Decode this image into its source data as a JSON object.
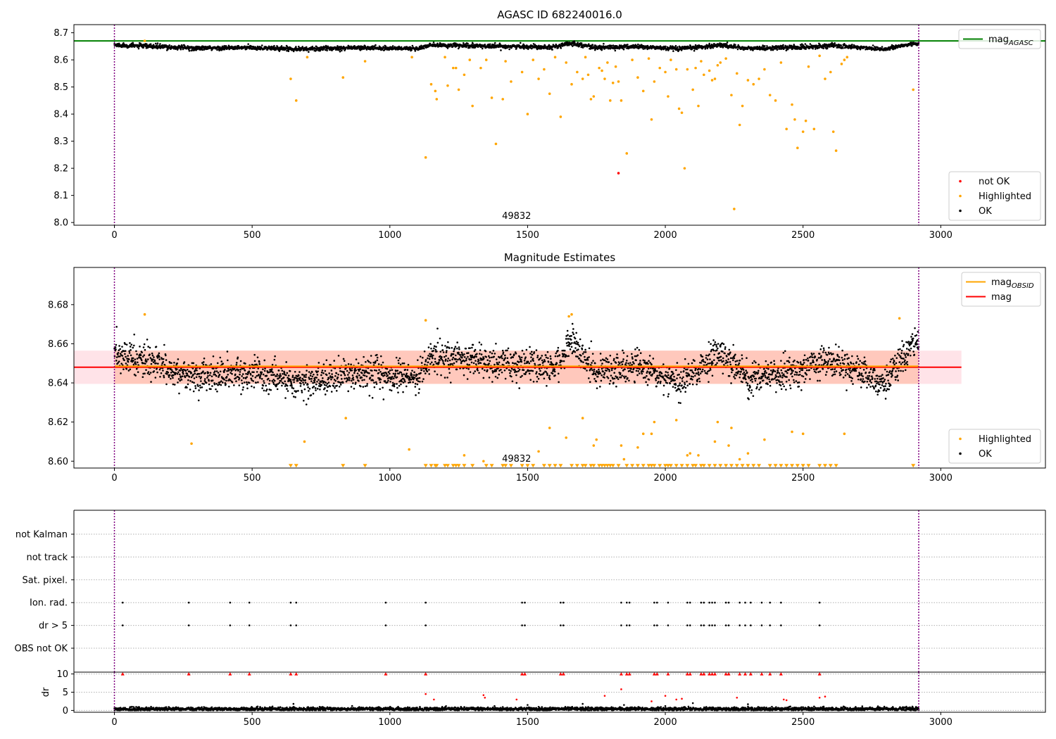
{
  "colors": {
    "ok": "#000000",
    "highlighted": "#FFA500",
    "not_ok": "#FF0000",
    "agasc_line": "#008000",
    "mag_line": "#FF0000",
    "mag_obsid_line": "#FFA500",
    "mag_band": "#FFC0CB",
    "obsid_band": "#FFA07A",
    "obsid_boundary": "#800080",
    "flag_grid": "#B0B0B0"
  },
  "chart_data": [
    {
      "type": "scatter",
      "title": "AGASC ID 682240016.0",
      "xlabel": "",
      "ylabel": "",
      "xlim": [
        -147,
        3380
      ],
      "ylim": [
        7.99,
        8.73
      ],
      "x_ticks": [
        0,
        500,
        1000,
        1500,
        2000,
        2500,
        3000
      ],
      "x_tick_labels": [
        "0",
        "500",
        "1000",
        "1500",
        "2000",
        "2500",
        "3000"
      ],
      "y_ticks": [
        8.0,
        8.1,
        8.2,
        8.3,
        8.4,
        8.5,
        8.6,
        8.7
      ],
      "y_tick_labels": [
        "8.0",
        "8.1",
        "8.2",
        "8.3",
        "8.4",
        "8.5",
        "8.6",
        "8.7"
      ],
      "obsid_boundaries": [
        0,
        2920
      ],
      "obsid_label": "49832",
      "obsid_label_x": 1460,
      "legend_upper": {
        "location": "upper right",
        "entries": [
          {
            "label": "mag",
            "subscript": "AGASC",
            "series": "mag_agasc"
          }
        ]
      },
      "legend_lower": {
        "location": "lower right",
        "entries": [
          {
            "label": "not OK",
            "series": "not_ok"
          },
          {
            "label": "Highlighted",
            "series": "highlighted"
          },
          {
            "label": "OK",
            "series": "ok"
          }
        ]
      },
      "mag_agasc": 8.67,
      "ok_trend": {
        "x_range": [
          0,
          2920
        ],
        "mean": 8.648,
        "variation": [
          [
            0,
            8.655
          ],
          [
            300,
            8.643
          ],
          [
            500,
            8.645
          ],
          [
            700,
            8.64
          ],
          [
            850,
            8.645
          ],
          [
            1100,
            8.642
          ],
          [
            1150,
            8.654
          ],
          [
            1400,
            8.65
          ],
          [
            1600,
            8.648
          ],
          [
            1660,
            8.662
          ],
          [
            1750,
            8.645
          ],
          [
            1900,
            8.649
          ],
          [
            2050,
            8.64
          ],
          [
            2200,
            8.655
          ],
          [
            2300,
            8.642
          ],
          [
            2500,
            8.647
          ],
          [
            2600,
            8.653
          ],
          [
            2800,
            8.64
          ],
          [
            2900,
            8.66
          ]
        ],
        "scatter": 0.004
      },
      "highlighted": [
        [
          110,
          8.67
        ],
        [
          640,
          8.53
        ],
        [
          660,
          8.45
        ],
        [
          700,
          8.61
        ],
        [
          830,
          8.535
        ],
        [
          910,
          8.595
        ],
        [
          1080,
          8.61
        ],
        [
          1130,
          8.24
        ],
        [
          1150,
          8.51
        ],
        [
          1165,
          8.485
        ],
        [
          1170,
          8.455
        ],
        [
          1200,
          8.61
        ],
        [
          1210,
          8.505
        ],
        [
          1230,
          8.57
        ],
        [
          1240,
          8.57
        ],
        [
          1250,
          8.49
        ],
        [
          1270,
          8.545
        ],
        [
          1290,
          8.6
        ],
        [
          1300,
          8.43
        ],
        [
          1330,
          8.57
        ],
        [
          1350,
          8.6
        ],
        [
          1370,
          8.46
        ],
        [
          1385,
          8.29
        ],
        [
          1410,
          8.455
        ],
        [
          1420,
          8.595
        ],
        [
          1440,
          8.52
        ],
        [
          1480,
          8.555
        ],
        [
          1500,
          8.4
        ],
        [
          1520,
          8.6
        ],
        [
          1540,
          8.53
        ],
        [
          1560,
          8.565
        ],
        [
          1580,
          8.475
        ],
        [
          1600,
          8.61
        ],
        [
          1620,
          8.39
        ],
        [
          1640,
          8.59
        ],
        [
          1660,
          8.51
        ],
        [
          1680,
          8.555
        ],
        [
          1700,
          8.53
        ],
        [
          1710,
          8.61
        ],
        [
          1720,
          8.545
        ],
        [
          1730,
          8.455
        ],
        [
          1740,
          8.465
        ],
        [
          1760,
          8.57
        ],
        [
          1770,
          8.56
        ],
        [
          1780,
          8.53
        ],
        [
          1790,
          8.59
        ],
        [
          1800,
          8.45
        ],
        [
          1810,
          8.515
        ],
        [
          1820,
          8.575
        ],
        [
          1830,
          8.52
        ],
        [
          1840,
          8.45
        ],
        [
          1860,
          8.255
        ],
        [
          1880,
          8.6
        ],
        [
          1900,
          8.535
        ],
        [
          1920,
          8.485
        ],
        [
          1940,
          8.605
        ],
        [
          1950,
          8.38
        ],
        [
          1960,
          8.52
        ],
        [
          1980,
          8.57
        ],
        [
          2000,
          8.555
        ],
        [
          2010,
          8.465
        ],
        [
          2020,
          8.6
        ],
        [
          2040,
          8.565
        ],
        [
          2050,
          8.42
        ],
        [
          2060,
          8.405
        ],
        [
          2080,
          8.565
        ],
        [
          2100,
          8.49
        ],
        [
          2110,
          8.57
        ],
        [
          2120,
          8.43
        ],
        [
          2130,
          8.595
        ],
        [
          2140,
          8.545
        ],
        [
          2160,
          8.56
        ],
        [
          2170,
          8.525
        ],
        [
          2180,
          8.53
        ],
        [
          2190,
          8.58
        ],
        [
          2200,
          8.59
        ],
        [
          2220,
          8.605
        ],
        [
          2240,
          8.47
        ],
        [
          2260,
          8.55
        ],
        [
          2270,
          8.36
        ],
        [
          2280,
          8.43
        ],
        [
          2300,
          8.525
        ],
        [
          2320,
          8.51
        ],
        [
          2340,
          8.53
        ],
        [
          2360,
          8.565
        ],
        [
          2380,
          8.47
        ],
        [
          2400,
          8.45
        ],
        [
          2420,
          8.59
        ],
        [
          2440,
          8.345
        ],
        [
          2460,
          8.435
        ],
        [
          2470,
          8.38
        ],
        [
          2480,
          8.275
        ],
        [
          2500,
          8.335
        ],
        [
          2510,
          8.375
        ],
        [
          2520,
          8.575
        ],
        [
          2540,
          8.345
        ],
        [
          2560,
          8.615
        ],
        [
          2580,
          8.53
        ],
        [
          2600,
          8.555
        ],
        [
          2610,
          8.335
        ],
        [
          2620,
          8.265
        ],
        [
          2640,
          8.585
        ],
        [
          2650,
          8.6
        ],
        [
          2660,
          8.61
        ],
        [
          2250,
          8.05
        ],
        [
          2070,
          8.2
        ],
        [
          2900,
          8.49
        ]
      ],
      "not_ok": [
        [
          1830,
          8.182
        ]
      ]
    },
    {
      "type": "scatter",
      "title": "Magnitude Estimates",
      "xlabel": "",
      "ylabel": "",
      "xlim": [
        -147,
        3380
      ],
      "ylim": [
        8.5965,
        8.699
      ],
      "x_ticks": [
        0,
        500,
        1000,
        1500,
        2000,
        2500,
        3000
      ],
      "x_tick_labels": [
        "0",
        "500",
        "1000",
        "1500",
        "2000",
        "2500",
        "3000"
      ],
      "y_ticks": [
        8.6,
        8.62,
        8.64,
        8.66,
        8.68
      ],
      "y_tick_labels": [
        "8.60",
        "8.62",
        "8.64",
        "8.66",
        "8.68"
      ],
      "obsid_boundaries": [
        0,
        2920
      ],
      "obsid_label": "49832",
      "obsid_label_x": 1460,
      "legend_upper": {
        "location": "upper right",
        "entries": [
          {
            "label": "mag",
            "subscript": "OBSID",
            "series": "mag_obsid"
          },
          {
            "label": "mag",
            "series": "mag"
          }
        ]
      },
      "legend_lower": {
        "location": "lower right",
        "entries": [
          {
            "label": "Highlighted",
            "series": "highlighted"
          },
          {
            "label": "OK",
            "series": "ok"
          }
        ]
      },
      "mag": 8.648,
      "mag_band": [
        8.6395,
        8.6565
      ],
      "mag_obsid": 8.6485,
      "obsid_band": [
        8.6395,
        8.6565
      ],
      "ok_trend": {
        "x_range": [
          0,
          2920
        ],
        "mean": 8.648,
        "variation": [
          [
            0,
            8.655
          ],
          [
            300,
            8.643
          ],
          [
            500,
            8.645
          ],
          [
            700,
            8.64
          ],
          [
            850,
            8.645
          ],
          [
            1100,
            8.642
          ],
          [
            1150,
            8.654
          ],
          [
            1400,
            8.65
          ],
          [
            1600,
            8.648
          ],
          [
            1660,
            8.662
          ],
          [
            1750,
            8.645
          ],
          [
            1900,
            8.649
          ],
          [
            2050,
            8.64
          ],
          [
            2200,
            8.655
          ],
          [
            2300,
            8.642
          ],
          [
            2500,
            8.647
          ],
          [
            2600,
            8.653
          ],
          [
            2800,
            8.64
          ],
          [
            2900,
            8.66
          ]
        ],
        "scatter": 0.004
      },
      "highlighted": [
        [
          110,
          8.675
        ],
        [
          280,
          8.609
        ],
        [
          690,
          8.61
        ],
        [
          840,
          8.622
        ],
        [
          1070,
          8.606
        ],
        [
          1130,
          8.672
        ],
        [
          1270,
          8.603
        ],
        [
          1340,
          8.6
        ],
        [
          1540,
          8.605
        ],
        [
          1580,
          8.617
        ],
        [
          1640,
          8.612
        ],
        [
          1650,
          8.674
        ],
        [
          1660,
          8.675
        ],
        [
          1700,
          8.622
        ],
        [
          1740,
          8.608
        ],
        [
          1750,
          8.611
        ],
        [
          1840,
          8.608
        ],
        [
          1850,
          8.601
        ],
        [
          1900,
          8.607
        ],
        [
          1920,
          8.614
        ],
        [
          1950,
          8.614
        ],
        [
          1960,
          8.62
        ],
        [
          2040,
          8.621
        ],
        [
          2080,
          8.603
        ],
        [
          2090,
          8.604
        ],
        [
          2120,
          8.603
        ],
        [
          2180,
          8.61
        ],
        [
          2190,
          8.62
        ],
        [
          2230,
          8.608
        ],
        [
          2240,
          8.617
        ],
        [
          2270,
          8.601
        ],
        [
          2300,
          8.604
        ],
        [
          2360,
          8.611
        ],
        [
          2460,
          8.615
        ],
        [
          2500,
          8.614
        ],
        [
          2650,
          8.614
        ],
        [
          2850,
          8.673
        ]
      ],
      "highlighted_below": [
        640,
        660,
        830,
        910,
        1130,
        1150,
        1165,
        1170,
        1200,
        1210,
        1230,
        1240,
        1250,
        1270,
        1300,
        1350,
        1370,
        1410,
        1420,
        1440,
        1480,
        1500,
        1520,
        1560,
        1580,
        1600,
        1620,
        1660,
        1680,
        1700,
        1710,
        1730,
        1740,
        1760,
        1770,
        1780,
        1790,
        1800,
        1810,
        1830,
        1860,
        1880,
        1900,
        1920,
        1940,
        1950,
        1960,
        1980,
        2000,
        2010,
        2020,
        2040,
        2060,
        2080,
        2100,
        2110,
        2130,
        2140,
        2160,
        2180,
        2200,
        2220,
        2240,
        2260,
        2280,
        2300,
        2320,
        2340,
        2380,
        2400,
        2420,
        2440,
        2460,
        2480,
        2500,
        2520,
        2560,
        2580,
        2600,
        2620,
        2900
      ],
      "highlighted_below_value": 8.5975
    },
    {
      "type": "scatter",
      "title": "",
      "xlabel": "",
      "ylabel": "",
      "xlim": [
        -147,
        3380
      ],
      "flag_rows": [
        "not Kalman",
        "not track",
        "Sat. pixel.",
        "Ion. rad.",
        "dr > 5",
        "OBS not OK"
      ],
      "flag_events": [
        30,
        270,
        420,
        490,
        640,
        660,
        985,
        1130,
        1480,
        1490,
        1620,
        1630,
        1840,
        1860,
        1870,
        1960,
        1970,
        2010,
        2080,
        2090,
        2130,
        2140,
        2160,
        2170,
        2180,
        2220,
        2230,
        2270,
        2290,
        2310,
        2350,
        2380,
        2420,
        2560
      ],
      "flag_event_rows": [
        "Ion. rad.",
        "dr > 5"
      ],
      "obsid_boundaries": [
        0,
        2920
      ]
    },
    {
      "type": "scatter",
      "title": "",
      "xlabel": "",
      "ylabel": "dr",
      "xlim": [
        -147,
        3380
      ],
      "ylim": [
        -0.5,
        10.5
      ],
      "x_ticks": [
        0,
        500,
        1000,
        1500,
        2000,
        2500,
        3000
      ],
      "x_tick_labels": [
        "0",
        "500",
        "1000",
        "1500",
        "2000",
        "2500",
        "3000"
      ],
      "y_ticks": [
        0,
        5,
        10
      ],
      "y_tick_labels": [
        "0",
        "5",
        "10"
      ],
      "dr_clip": 10,
      "obsid_boundaries": [
        0,
        2920
      ],
      "dr_ok_trend": {
        "x_range": [
          0,
          2920
        ],
        "level": 0.4,
        "scatter": 0.25
      },
      "dr_high_ok": [
        [
          650,
          1.8
        ],
        [
          1380,
          1.2
        ],
        [
          1500,
          1.5
        ],
        [
          1700,
          1.8
        ],
        [
          1850,
          1.5
        ],
        [
          2000,
          1.2
        ],
        [
          2100,
          2.0
        ],
        [
          2300,
          1.7
        ],
        [
          2450,
          1.0
        ]
      ],
      "dr_red": [
        [
          1130,
          4.5
        ],
        [
          1160,
          3.0
        ],
        [
          1340,
          4.2
        ],
        [
          1345,
          3.5
        ],
        [
          1460,
          3.0
        ],
        [
          1780,
          4.0
        ],
        [
          1840,
          5.8
        ],
        [
          1950,
          2.5
        ],
        [
          2000,
          4.0
        ],
        [
          2040,
          3.0
        ],
        [
          2060,
          3.2
        ],
        [
          2260,
          3.5
        ],
        [
          2430,
          3.0
        ],
        [
          2440,
          2.8
        ],
        [
          2560,
          3.5
        ],
        [
          2580,
          3.8
        ]
      ],
      "dr_red_clipped": [
        30,
        270,
        420,
        490,
        640,
        660,
        985,
        1130,
        1480,
        1490,
        1620,
        1630,
        1840,
        1860,
        1870,
        1960,
        1970,
        2010,
        2080,
        2090,
        2130,
        2140,
        2160,
        2170,
        2180,
        2220,
        2230,
        2270,
        2290,
        2310,
        2350,
        2380,
        2420,
        2560
      ]
    }
  ]
}
